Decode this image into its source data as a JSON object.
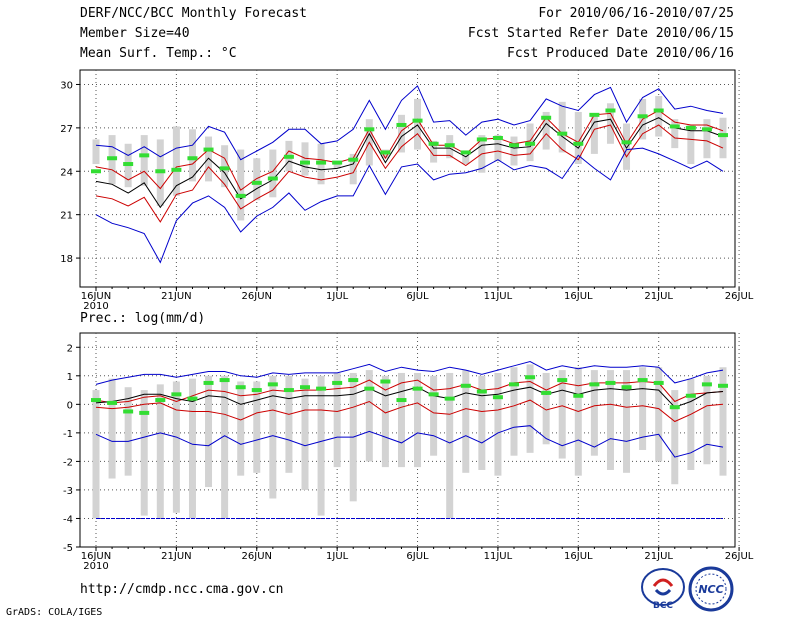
{
  "header": {
    "title": "DERF/NCC/BCC Monthly Forecast",
    "member": "Member Size=40",
    "variable": "Mean Surf. Temp.: °C",
    "for": "For 2010/06/16-2010/07/25",
    "started": "Fcst Started Refer Date 2010/06/15",
    "produced": "Fcst Produced Date 2010/06/16"
  },
  "footer": {
    "url": "http://cmdp.ncc.cma.gov.cn",
    "grads": "GrADS: COLA/IGES",
    "logo_bcc": "BCC",
    "logo_ncc": "NCC"
  },
  "colors": {
    "max_line": "#0000cc",
    "min_line": "#0000cc",
    "mean_line": "#000000",
    "spread_line": "#cc0000",
    "bar": "#d3d3d3",
    "green": "#33dd33"
  },
  "chart_data": [
    {
      "type": "line",
      "title": "Mean Surf. Temp.: °C",
      "ylabel": "°C",
      "ylim": [
        16,
        31
      ],
      "yticks": [
        18,
        21,
        24,
        27,
        30
      ],
      "xlabels": [
        "16JUN",
        "21JUN",
        "26JUN",
        "1JUL",
        "6JUL",
        "11JUL",
        "16JUL",
        "21JUL",
        "26JUL"
      ],
      "year_label": "2010",
      "days": 40,
      "series": [
        {
          "name": "ensemble max",
          "values": [
            25.8,
            25.7,
            25.1,
            25.7,
            25.0,
            25.6,
            25.8,
            27.1,
            26.7,
            24.8,
            25.4,
            26.0,
            26.9,
            26.9,
            25.9,
            26.1,
            26.9,
            28.9,
            26.9,
            28.9,
            29.9,
            27.4,
            27.5,
            26.5,
            27.4,
            27.6,
            27.2,
            27.5,
            29.0,
            28.5,
            28.2,
            29.3,
            29.8,
            27.4,
            29.1,
            29.7,
            28.3,
            28.5,
            28.2,
            28.0
          ]
        },
        {
          "name": "spread upper",
          "values": [
            24.3,
            24.1,
            23.4,
            24.0,
            22.8,
            24.3,
            24.5,
            25.5,
            24.9,
            22.7,
            23.5,
            24.0,
            25.4,
            24.9,
            24.8,
            24.6,
            24.9,
            26.9,
            24.9,
            26.8,
            27.6,
            25.8,
            25.8,
            25.2,
            26.2,
            26.3,
            25.9,
            26.1,
            27.7,
            26.6,
            26.0,
            27.9,
            28.0,
            25.9,
            27.6,
            28.2,
            27.4,
            27.2,
            27.2,
            26.8
          ]
        },
        {
          "name": "ensemble mean",
          "values": [
            23.3,
            23.1,
            22.5,
            23.2,
            21.5,
            23.0,
            23.6,
            24.9,
            23.9,
            22.1,
            22.8,
            23.4,
            24.7,
            24.3,
            24.1,
            24.2,
            24.5,
            26.6,
            24.6,
            26.4,
            27.2,
            25.6,
            25.6,
            25.0,
            25.8,
            25.9,
            25.6,
            25.7,
            27.3,
            26.4,
            25.6,
            27.4,
            27.6,
            25.6,
            27.2,
            27.7,
            27.0,
            26.8,
            26.8,
            26.4
          ]
        },
        {
          "name": "spread lower",
          "values": [
            22.3,
            22.1,
            21.6,
            22.2,
            20.5,
            22.4,
            22.7,
            24.3,
            23.1,
            21.4,
            22.1,
            22.7,
            24.0,
            23.6,
            23.4,
            23.6,
            23.9,
            26.0,
            24.2,
            25.7,
            26.6,
            25.1,
            25.1,
            24.4,
            25.2,
            25.4,
            25.1,
            25.2,
            26.6,
            25.5,
            24.8,
            26.9,
            27.2,
            25.0,
            26.6,
            27.2,
            26.3,
            26.2,
            26.1,
            25.6
          ]
        },
        {
          "name": "ensemble min",
          "values": [
            21.0,
            20.4,
            20.1,
            19.7,
            17.7,
            20.6,
            21.8,
            22.3,
            21.5,
            19.8,
            20.9,
            21.5,
            22.5,
            21.3,
            21.9,
            22.3,
            22.3,
            24.4,
            22.4,
            24.3,
            24.5,
            23.4,
            23.8,
            23.9,
            24.2,
            24.8,
            24.1,
            24.4,
            24.2,
            23.5,
            25.1,
            24.2,
            23.4,
            25.5,
            25.6,
            25.2,
            24.7,
            24.2,
            24.7,
            24.0
          ]
        },
        {
          "name": "green marker",
          "values": [
            24.0,
            24.9,
            24.5,
            25.1,
            24.0,
            24.1,
            24.9,
            25.5,
            24.2,
            22.3,
            23.2,
            23.5,
            25.0,
            24.6,
            24.6,
            24.6,
            24.8,
            26.9,
            25.3,
            27.2,
            27.5,
            25.9,
            25.8,
            25.3,
            26.2,
            26.3,
            25.8,
            25.9,
            27.7,
            26.6,
            25.9,
            27.9,
            28.2,
            26.0,
            27.8,
            28.2,
            27.1,
            27.0,
            26.9,
            26.5
          ]
        }
      ],
      "bars": [
        [
          24.5,
          26.2
        ],
        [
          23.1,
          26.5
        ],
        [
          22.9,
          25.9
        ],
        [
          23.0,
          26.5
        ],
        [
          21.6,
          26.2
        ],
        [
          22.3,
          27.1
        ],
        [
          23.3,
          26.9
        ],
        [
          23.3,
          26.4
        ],
        [
          22.9,
          25.8
        ],
        [
          20.6,
          25.5
        ],
        [
          22.0,
          24.9
        ],
        [
          22.2,
          25.5
        ],
        [
          24.0,
          26.1
        ],
        [
          23.7,
          26.0
        ],
        [
          23.1,
          25.9
        ],
        [
          24.2,
          24.6
        ],
        [
          23.1,
          25.2
        ],
        [
          24.4,
          27.6
        ],
        [
          24.9,
          25.5
        ],
        [
          25.3,
          27.9
        ],
        [
          25.5,
          29.0
        ],
        [
          24.6,
          26.1
        ],
        [
          24.9,
          26.5
        ],
        [
          24.5,
          25.1
        ],
        [
          23.9,
          26.5
        ],
        [
          24.7,
          26.5
        ],
        [
          24.4,
          26.4
        ],
        [
          24.7,
          27.3
        ],
        [
          25.5,
          28.1
        ],
        [
          25.3,
          28.8
        ],
        [
          24.5,
          28.1
        ],
        [
          25.2,
          28.0
        ],
        [
          25.9,
          28.7
        ],
        [
          24.1,
          27.3
        ],
        [
          26.2,
          29.0
        ],
        [
          26.4,
          29.2
        ],
        [
          25.6,
          27.6
        ],
        [
          24.5,
          27.2
        ],
        [
          24.9,
          27.6
        ],
        [
          24.9,
          27.7
        ]
      ]
    },
    {
      "type": "line",
      "title": "Prec.: log(mm/d)",
      "ylabel": "log(mm/d)",
      "ylim": [
        -5,
        2.5
      ],
      "yticks": [
        -5,
        -4,
        -3,
        -2,
        -1,
        0,
        1,
        2
      ],
      "xlabels": [
        "16JUN",
        "21JUN",
        "26JUN",
        "1JUL",
        "6JUL",
        "11JUL",
        "16JUL",
        "21JUL",
        "26JUL"
      ],
      "year_label": "2010",
      "days": 40,
      "series": [
        {
          "name": "ensemble max",
          "values": [
            0.7,
            0.85,
            0.95,
            1.05,
            1.05,
            0.95,
            1.05,
            1.15,
            1.15,
            1.0,
            0.95,
            1.1,
            1.05,
            1.1,
            1.1,
            1.1,
            1.25,
            1.4,
            1.15,
            1.3,
            1.2,
            1.15,
            1.3,
            1.2,
            1.05,
            1.2,
            1.35,
            1.5,
            1.2,
            1.35,
            1.25,
            1.35,
            1.3,
            1.3,
            1.35,
            1.3,
            0.75,
            0.9,
            1.1,
            1.2
          ]
        },
        {
          "name": "spread upper",
          "values": [
            0.15,
            0.05,
            0.1,
            0.25,
            0.3,
            0.1,
            0.3,
            0.5,
            0.45,
            0.3,
            0.35,
            0.5,
            0.45,
            0.5,
            0.5,
            0.55,
            0.6,
            0.85,
            0.5,
            0.75,
            0.85,
            0.5,
            0.55,
            0.7,
            0.5,
            0.55,
            0.75,
            0.8,
            0.5,
            0.75,
            0.65,
            0.75,
            0.75,
            0.75,
            0.8,
            0.75,
            0.1,
            0.35,
            0.4,
            0.45
          ]
        },
        {
          "name": "ensemble mean",
          "values": [
            0.05,
            0.1,
            0.2,
            0.35,
            0.35,
            0.2,
            0.1,
            0.3,
            0.25,
            0.0,
            0.15,
            0.3,
            0.2,
            0.3,
            0.3,
            0.3,
            0.35,
            0.55,
            0.3,
            0.45,
            0.6,
            0.3,
            0.2,
            0.4,
            0.3,
            0.35,
            0.5,
            0.6,
            0.35,
            0.5,
            0.35,
            0.5,
            0.55,
            0.5,
            0.55,
            0.5,
            -0.1,
            0.1,
            0.4,
            0.45
          ]
        },
        {
          "name": "spread lower",
          "values": [
            -0.1,
            -0.15,
            -0.1,
            0.0,
            0.05,
            -0.2,
            -0.25,
            -0.25,
            -0.35,
            -0.55,
            -0.3,
            -0.2,
            -0.35,
            -0.2,
            -0.2,
            -0.25,
            -0.1,
            0.1,
            -0.3,
            -0.1,
            0.05,
            -0.3,
            -0.35,
            -0.15,
            -0.25,
            -0.2,
            -0.05,
            0.15,
            -0.2,
            -0.05,
            -0.25,
            -0.05,
            0.0,
            -0.1,
            -0.05,
            -0.15,
            -0.6,
            -0.35,
            -0.05,
            0.0
          ]
        },
        {
          "name": "ensemble min",
          "values": [
            -1.05,
            -1.3,
            -1.3,
            -1.15,
            -1.0,
            -1.15,
            -1.4,
            -1.45,
            -1.1,
            -1.4,
            -1.25,
            -1.1,
            -1.25,
            -1.45,
            -1.3,
            -1.15,
            -1.15,
            -0.95,
            -1.15,
            -1.35,
            -1.0,
            -1.1,
            -1.35,
            -1.1,
            -1.35,
            -1.0,
            -0.8,
            -0.75,
            -1.2,
            -1.45,
            -1.25,
            -1.5,
            -1.2,
            -1.3,
            -1.15,
            -1.05,
            -1.85,
            -1.7,
            -1.4,
            -1.5
          ]
        },
        {
          "name": "green marker",
          "values": [
            0.15,
            0.05,
            -0.25,
            -0.3,
            0.15,
            0.35,
            0.2,
            0.75,
            0.85,
            0.6,
            0.5,
            0.7,
            0.5,
            0.6,
            0.55,
            0.75,
            0.85,
            0.55,
            0.8,
            0.15,
            0.55,
            0.35,
            0.2,
            0.65,
            0.45,
            0.25,
            0.7,
            0.95,
            0.4,
            0.85,
            0.3,
            0.7,
            0.75,
            0.6,
            0.85,
            0.75,
            -0.1,
            0.3,
            0.7,
            0.65
          ]
        }
      ],
      "bars": [
        [
          -4.0,
          0.5
        ],
        [
          -2.6,
          0.9
        ],
        [
          -2.5,
          0.6
        ],
        [
          -3.9,
          0.5
        ],
        [
          -4.0,
          0.7
        ],
        [
          -3.8,
          0.8
        ],
        [
          -4.0,
          0.9
        ],
        [
          -2.9,
          1.0
        ],
        [
          -4.0,
          1.0
        ],
        [
          -2.5,
          0.8
        ],
        [
          -2.4,
          0.8
        ],
        [
          -3.3,
          1.0
        ],
        [
          -2.4,
          1.0
        ],
        [
          -3.0,
          0.9
        ],
        [
          -3.9,
          1.0
        ],
        [
          -2.2,
          1.1
        ],
        [
          -3.4,
          1.1
        ],
        [
          -2.0,
          1.2
        ],
        [
          -2.2,
          1.0
        ],
        [
          -2.2,
          1.1
        ],
        [
          -2.2,
          1.1
        ],
        [
          -1.8,
          1.0
        ],
        [
          -4.0,
          1.1
        ],
        [
          -2.4,
          1.2
        ],
        [
          -2.3,
          1.0
        ],
        [
          -2.5,
          1.1
        ],
        [
          -1.8,
          1.3
        ],
        [
          -1.7,
          1.4
        ],
        [
          -1.4,
          1.1
        ],
        [
          -1.9,
          1.2
        ],
        [
          -2.5,
          1.3
        ],
        [
          -1.8,
          1.2
        ],
        [
          -2.3,
          1.2
        ],
        [
          -2.4,
          1.2
        ],
        [
          -1.6,
          1.3
        ],
        [
          -2.0,
          1.3
        ],
        [
          -2.8,
          0.5
        ],
        [
          -2.3,
          0.9
        ],
        [
          -2.1,
          1.0
        ],
        [
          -2.5,
          1.3
        ]
      ],
      "baseline": -4
    }
  ]
}
